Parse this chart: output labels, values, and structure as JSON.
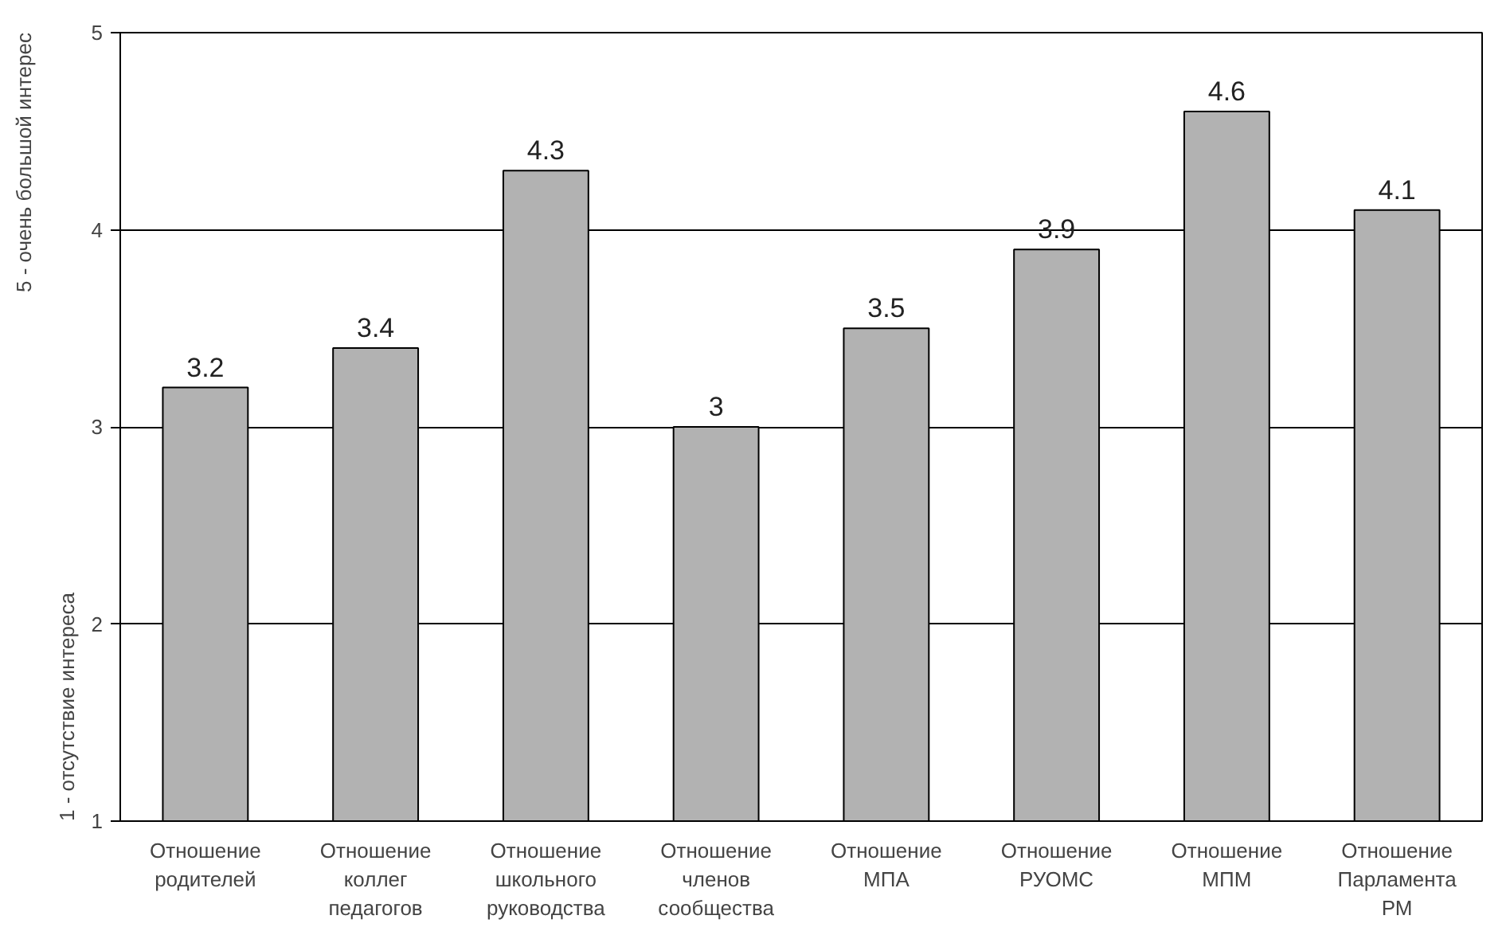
{
  "chart_data": {
    "type": "bar",
    "categories": [
      "Отношение родителей",
      "Отношение коллег педагогов",
      "Отношение школьного руководства",
      "Отношение членов сообщества",
      "Отношение МПА",
      "Отношение РУОМС",
      "Отношение МПМ",
      "Отношение Парламента РМ"
    ],
    "values": [
      3.2,
      3.4,
      4.3,
      3,
      3.5,
      3.9,
      4.6,
      4.1
    ],
    "color": "#b2b2b2",
    "ylim": [
      1,
      5
    ],
    "yticks": [
      1,
      2,
      3,
      4,
      5
    ],
    "grid": "y",
    "data_labels": true,
    "annotations": [
      "1 - отсутствие интереса",
      "5 - очень большой интерес"
    ]
  }
}
